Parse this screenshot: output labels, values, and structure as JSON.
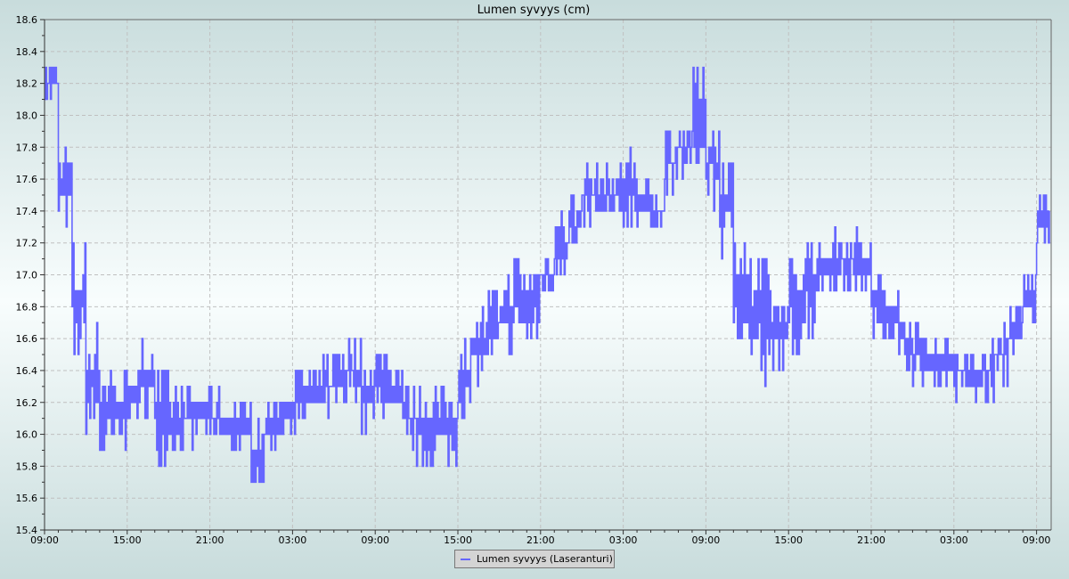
{
  "chart_data": {
    "type": "line",
    "title": "Lumen syvyys (cm)",
    "xlabel": "",
    "ylabel": "",
    "ylim": [
      15.4,
      18.6
    ],
    "yticks": [
      "15.4",
      "15.6",
      "15.8",
      "16.0",
      "16.2",
      "16.4",
      "16.6",
      "16.8",
      "17.0",
      "17.2",
      "17.4",
      "17.6",
      "17.8",
      "18.0",
      "18.2",
      "18.4",
      "18.6"
    ],
    "xticks": [
      "09:00",
      "15:00",
      "21:00",
      "03:00",
      "09:00",
      "15:00",
      "21:00",
      "03:00",
      "09:00",
      "15:00",
      "21:00",
      "03:00",
      "09:00"
    ],
    "grid": true,
    "legend_placement": "bottom",
    "series": [
      {
        "name": "Lumen syvyys (Laseranturi)",
        "color": "#6666ff",
        "note_values": "hourly min / max range of noisy readings, starting 09:00",
        "min": [
          18.1,
          17.3,
          16.4,
          16.0,
          15.8,
          15.9,
          16.1,
          16.1,
          15.8,
          15.9,
          15.9,
          16.0,
          15.9,
          15.9,
          15.9,
          15.7,
          15.9,
          16.0,
          16.0,
          16.1,
          16.1,
          16.1,
          16.2,
          16.0,
          16.1,
          16.0,
          15.9,
          15.8,
          15.8,
          15.8,
          16.1,
          16.3,
          16.4,
          16.5,
          16.6,
          16.5,
          16.9,
          17.0,
          17.1,
          17.3,
          17.3,
          17.3,
          17.3,
          17.3,
          17.3,
          17.5,
          17.6,
          17.6,
          17.4,
          17.1,
          16.6,
          16.4,
          16.2,
          16.4,
          16.5,
          16.6,
          16.9,
          16.9,
          16.9,
          16.9,
          16.6,
          16.6,
          16.4,
          16.3,
          16.3,
          16.3,
          16.2,
          16.2,
          16.2,
          16.3,
          16.5,
          16.7,
          17.2
        ],
        "max": [
          18.3,
          17.8,
          17.2,
          16.7,
          16.5,
          16.4,
          16.4,
          16.6,
          16.4,
          16.3,
          16.3,
          16.3,
          16.3,
          16.2,
          16.2,
          16.1,
          16.2,
          16.3,
          16.4,
          16.4,
          16.5,
          16.6,
          16.6,
          16.5,
          16.6,
          16.5,
          16.3,
          16.3,
          16.3,
          16.3,
          16.6,
          16.8,
          16.9,
          17.0,
          17.1,
          17.1,
          17.1,
          17.4,
          17.5,
          17.7,
          17.7,
          17.7,
          17.8,
          17.6,
          17.5,
          17.9,
          18.0,
          18.3,
          18.0,
          17.8,
          17.3,
          17.1,
          17.1,
          16.9,
          17.1,
          17.3,
          17.2,
          17.3,
          17.3,
          17.2,
          17.0,
          16.9,
          16.8,
          16.7,
          16.6,
          16.6,
          16.6,
          16.5,
          16.6,
          16.7,
          16.8,
          17.0,
          17.5
        ]
      }
    ]
  }
}
